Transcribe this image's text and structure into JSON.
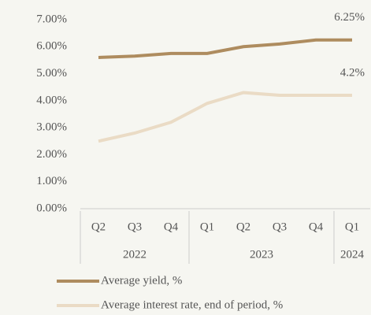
{
  "chart_data": {
    "type": "line",
    "categories": [
      "Q2",
      "Q3",
      "Q4",
      "Q1",
      "Q2",
      "Q3",
      "Q4",
      "Q1"
    ],
    "groups": [
      {
        "label": "2022",
        "size": 3
      },
      {
        "label": "2023",
        "size": 4
      },
      {
        "label": "2024",
        "size": 1
      }
    ],
    "series": [
      {
        "name": "Average yield, %",
        "color": "#ae8c5f",
        "values": [
          5.6,
          5.65,
          5.75,
          5.75,
          6.0,
          6.1,
          6.25,
          6.25
        ],
        "value_labels": [
          null,
          null,
          null,
          null,
          null,
          null,
          null,
          "6.25%"
        ]
      },
      {
        "name": "Average interest rate, end of period, %",
        "color": "#eadbc5",
        "values": [
          2.5,
          2.8,
          3.2,
          3.9,
          4.3,
          4.2,
          4.2,
          4.2
        ],
        "value_labels": [
          null,
          null,
          null,
          null,
          null,
          null,
          null,
          "4.2%"
        ]
      }
    ],
    "ylim": [
      0,
      7
    ],
    "yticks": [
      {
        "value": 0,
        "label": "0.00%"
      },
      {
        "value": 1,
        "label": "1.00%"
      },
      {
        "value": 2,
        "label": "2.00%"
      },
      {
        "value": 3,
        "label": "3.00%"
      },
      {
        "value": 4,
        "label": "4.00%"
      },
      {
        "value": 5,
        "label": "5.00%"
      },
      {
        "value": 6,
        "label": "6.00%"
      },
      {
        "value": 7,
        "label": "7.00%"
      }
    ],
    "grid": false,
    "legend": "bottom"
  }
}
